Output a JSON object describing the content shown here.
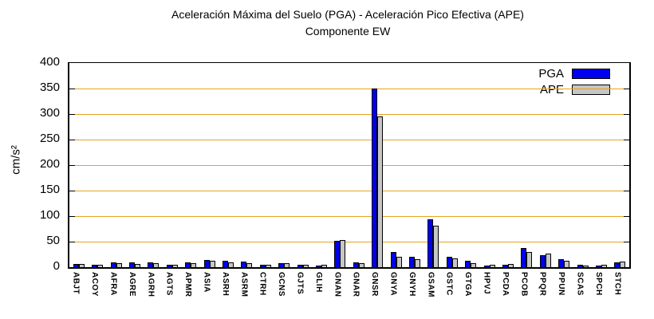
{
  "chart_data": {
    "type": "bar",
    "title": "Aceleración Máxima del Suelo (PGA) -  Aceleración Pico Efectiva (APE)",
    "subtitle": "Componente EW",
    "ylabel": "cm/s²",
    "ylim": [
      0,
      400
    ],
    "yticks": [
      0,
      50,
      100,
      150,
      200,
      250,
      300,
      350,
      400
    ],
    "grid": "horizontal",
    "legend_position": "top-right-inside",
    "categories": [
      "ABJT",
      "ACOY",
      "AFRA",
      "AGRE",
      "AGRH",
      "AGTS",
      "APMR",
      "ASIA",
      "ASRH",
      "ASRM",
      "CTRH",
      "GCNS",
      "GJTS",
      "GLIH",
      "GNAN",
      "GNAR",
      "GNSR",
      "GNYA",
      "GNYH",
      "GSAM",
      "GSTC",
      "GTGA",
      "HPVJ",
      "PCDA",
      "PCOB",
      "PPQR",
      "PPUN",
      "SCAS",
      "SPCH",
      "STCH"
    ],
    "series": [
      {
        "name": "PGA",
        "color": "#0000ee",
        "values": [
          7,
          5,
          9,
          9,
          10,
          4,
          9,
          14,
          12,
          11,
          4,
          8,
          4,
          2,
          52,
          10,
          350,
          30,
          21,
          94,
          21,
          12,
          3,
          5,
          37,
          24,
          16,
          4,
          3,
          10
        ]
      },
      {
        "name": "APE",
        "color": "#c6c6c6",
        "values": [
          6,
          4,
          8,
          7,
          8,
          5,
          8,
          12,
          9,
          8,
          5,
          8,
          5,
          4,
          53,
          8,
          295,
          20,
          16,
          82,
          17,
          8,
          4,
          7,
          30,
          26,
          13,
          3,
          5,
          11
        ]
      }
    ],
    "colors": {
      "gridline": "#e8a420",
      "axis": "#000000",
      "background": "#ffffff",
      "text": "#000000"
    }
  }
}
